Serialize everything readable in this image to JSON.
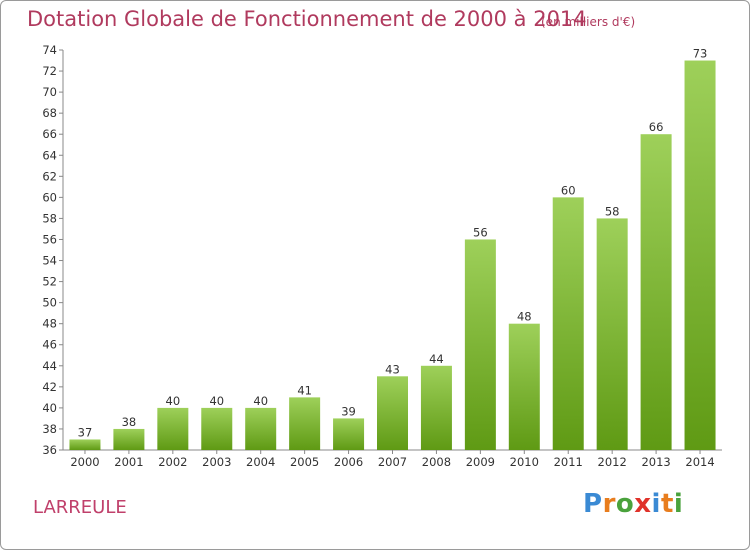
{
  "title": "Dotation Globale de Fonctionnement de 2000 à 2014",
  "subtitle": "(en milliers d'€)",
  "commune": "LARREULE",
  "logo": {
    "letters": [
      "P",
      "r",
      "o",
      "x",
      "i",
      "t",
      "i"
    ],
    "colors": [
      "#3a8ad4",
      "#e87d1e",
      "#4aa23c",
      "#e0322a",
      "#3a8ad4",
      "#e87d1e",
      "#4aa23c"
    ]
  },
  "colors": {
    "bar_top": "#9ed05a",
    "bar_bottom": "#5f9a14",
    "title": "#b03a5e"
  },
  "chart_data": {
    "type": "bar",
    "title": "Dotation Globale de Fonctionnement de 2000 à 2014",
    "subtitle": "(en milliers d'€)",
    "categories": [
      "2000",
      "2001",
      "2002",
      "2003",
      "2004",
      "2005",
      "2006",
      "2007",
      "2008",
      "2009",
      "2010",
      "2011",
      "2012",
      "2013",
      "2014"
    ],
    "values": [
      37,
      38,
      40,
      40,
      40,
      41,
      39,
      43,
      44,
      56,
      48,
      60,
      58,
      66,
      73
    ],
    "ylim": [
      36,
      74
    ],
    "yticks": [
      36,
      38,
      40,
      42,
      44,
      46,
      48,
      50,
      52,
      54,
      56,
      58,
      60,
      62,
      64,
      66,
      68,
      70,
      72,
      74
    ],
    "grid": false,
    "data_labels": true
  }
}
